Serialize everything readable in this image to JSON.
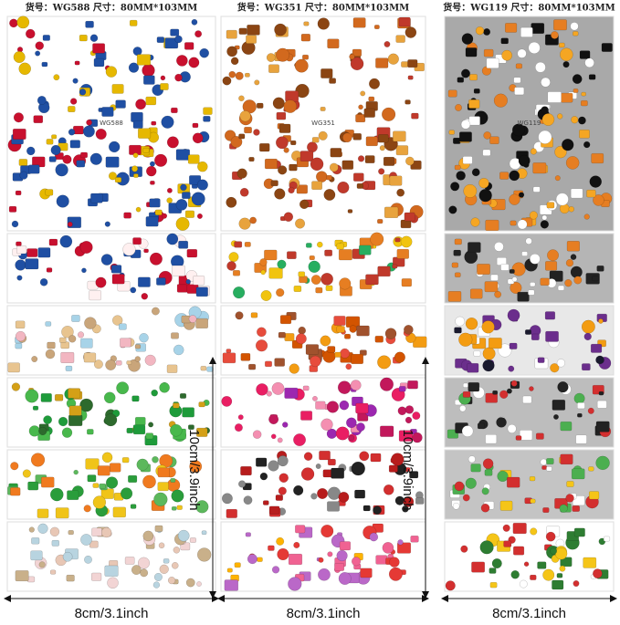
{
  "sheets": [
    {
      "header": "货号：WG588 尺寸：80MM*103MM",
      "code": "WG588"
    },
    {
      "header": "货号：WG351 尺寸：80MM*103MM",
      "code": "WG351"
    },
    {
      "header": "货号：WG119 尺寸：80MM*103MM",
      "code": "WG119"
    }
  ],
  "dimensions": {
    "height": [
      "10cm/3.9inch",
      "10cm/3.9inch"
    ],
    "width": [
      "8cm/3.1inch",
      "8cm/3.1inch",
      "8cm/3.1inch"
    ]
  }
}
